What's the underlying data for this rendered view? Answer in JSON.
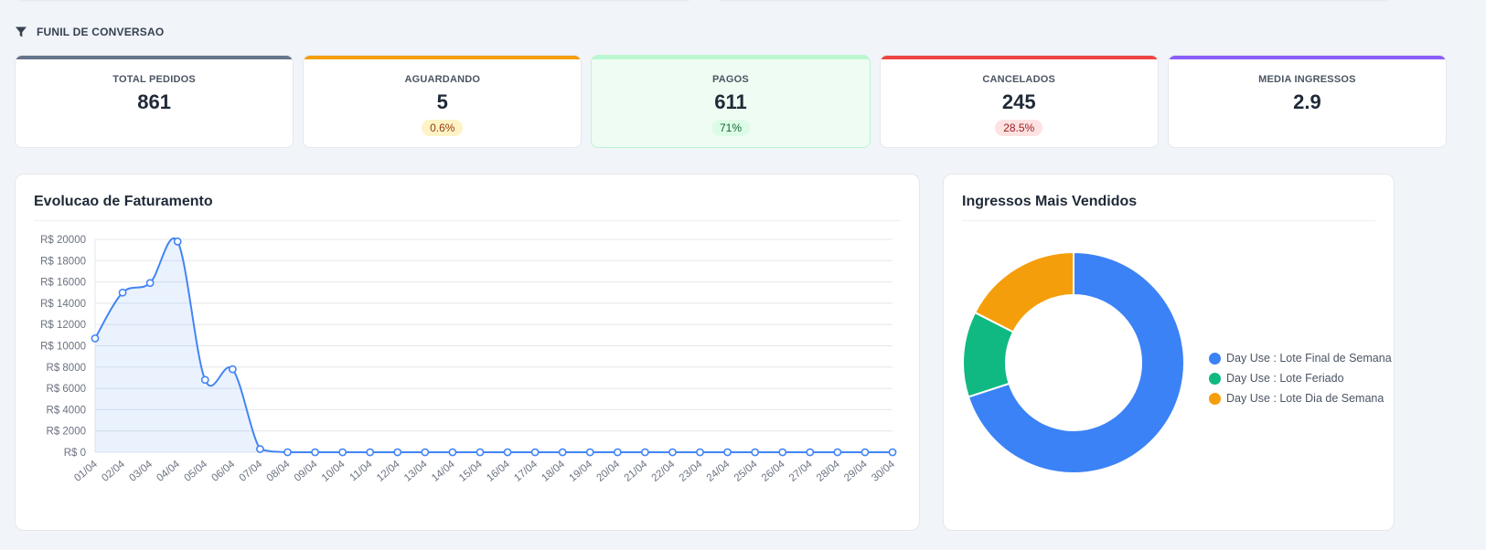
{
  "section": {
    "title": "FUNIL DE CONVERSAO",
    "icon": "funnel-icon"
  },
  "kpis": [
    {
      "key": "total",
      "label": "TOTAL PEDIDOS",
      "value": "861",
      "badge": "",
      "accent": "#64748b"
    },
    {
      "key": "waiting",
      "label": "AGUARDANDO",
      "value": "5",
      "badge": "0.6%",
      "accent": "#f59e0b",
      "badge_bg": "#fef3c7",
      "badge_color": "#92400e"
    },
    {
      "key": "paid",
      "label": "PAGOS",
      "value": "611",
      "badge": "71%",
      "accent": "#bbf7d0",
      "badge_bg": "#dcfce7",
      "badge_color": "#166534"
    },
    {
      "key": "cancelled",
      "label": "CANCELADOS",
      "value": "245",
      "badge": "28.5%",
      "accent": "#ef4444",
      "badge_bg": "#fee2e2",
      "badge_color": "#991b1b"
    },
    {
      "key": "avg",
      "label": "MEDIA INGRESSOS",
      "value": "2.9",
      "badge": "",
      "accent": "#8b5cf6"
    }
  ],
  "revenue_panel": {
    "title": "Evolucao de Faturamento"
  },
  "tickets_panel": {
    "title": "Ingressos Mais Vendidos"
  },
  "chart_data": [
    {
      "type": "area",
      "title": "Evolucao de Faturamento",
      "x": [
        "01/04",
        "02/04",
        "03/04",
        "04/04",
        "05/04",
        "06/04",
        "07/04",
        "08/04",
        "09/04",
        "10/04",
        "11/04",
        "12/04",
        "13/04",
        "14/04",
        "15/04",
        "16/04",
        "17/04",
        "18/04",
        "19/04",
        "20/04",
        "21/04",
        "22/04",
        "23/04",
        "24/04",
        "25/04",
        "26/04",
        "27/04",
        "28/04",
        "29/04",
        "30/04"
      ],
      "values": [
        10700,
        15000,
        15900,
        19800,
        6800,
        7800,
        300,
        0,
        0,
        0,
        0,
        0,
        0,
        0,
        0,
        0,
        0,
        0,
        0,
        0,
        0,
        0,
        0,
        0,
        0,
        0,
        0,
        0,
        0,
        0
      ],
      "yticks": [
        "R$ 0",
        "R$ 2000",
        "R$ 4000",
        "R$ 6000",
        "R$ 8000",
        "R$ 10000",
        "R$ 12000",
        "R$ 14000",
        "R$ 16000",
        "R$ 18000",
        "R$ 20000"
      ],
      "ylim": [
        0,
        20000
      ],
      "grid": true,
      "color": "#4285f4"
    },
    {
      "type": "pie",
      "title": "Ingressos Mais Vendidos",
      "labels": [
        "Day Use : Lote Final de Semana",
        "Day Use : Lote Feriado",
        "Day Use : Lote Dia de Semana"
      ],
      "values": [
        70,
        12.5,
        17.5
      ],
      "colors": [
        "#3b82f6",
        "#10b981",
        "#f59e0b"
      ],
      "legend": "right"
    }
  ]
}
